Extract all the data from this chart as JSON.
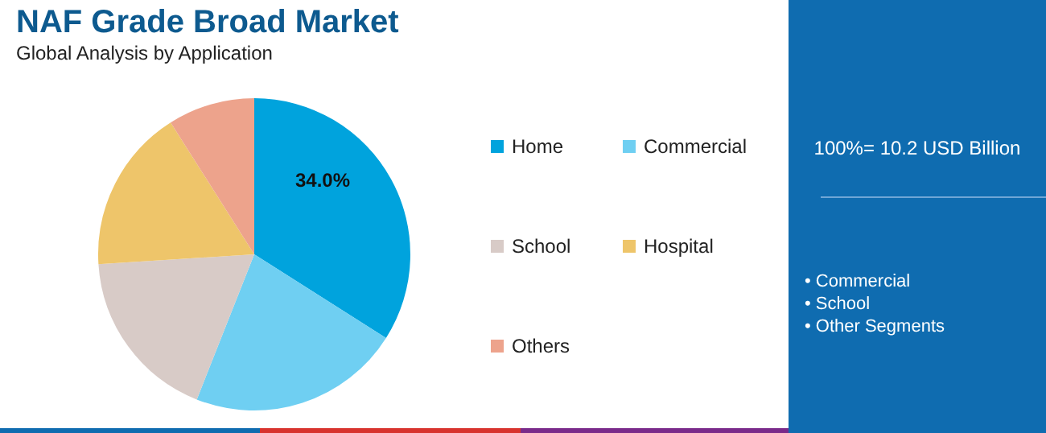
{
  "chart_data": {
    "type": "pie",
    "title": "NAF Grade Broad Market",
    "subtitle": "Global Analysis by Application",
    "categories": [
      "Home",
      "Commercial",
      "School",
      "Hospital",
      "Others"
    ],
    "values": [
      34,
      22,
      18,
      17,
      9
    ],
    "colors": [
      "#00a3dd",
      "#6fcff2",
      "#d8cbc7",
      "#eec56a",
      "#eda38c"
    ],
    "value_labels": [
      "34.0%",
      null,
      null,
      null,
      null
    ],
    "legend": "right",
    "annotations": [
      "100%= 10.2 USD Billion",
      "• Commercial",
      "• School",
      "• Other Segments"
    ]
  }
}
